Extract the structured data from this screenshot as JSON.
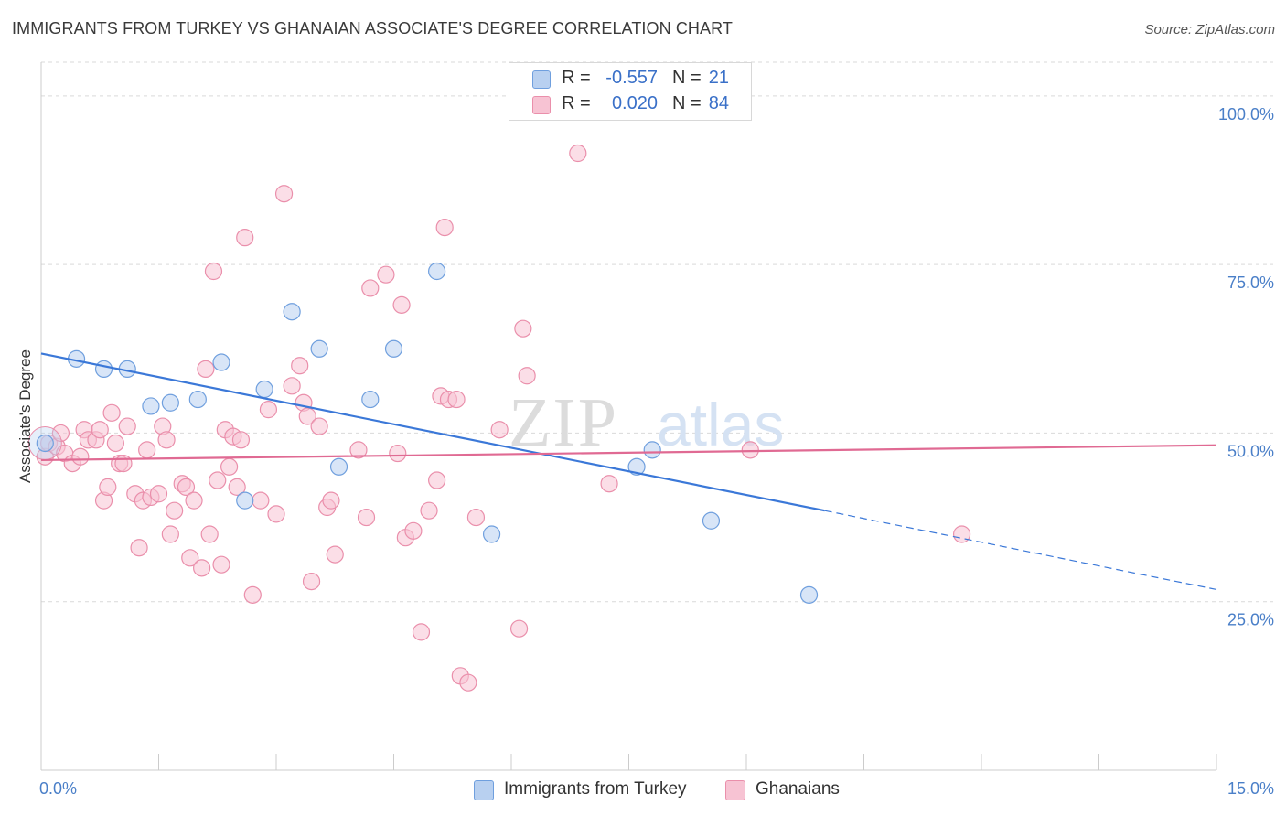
{
  "title": "IMMIGRANTS FROM TURKEY VS GHANAIAN ASSOCIATE'S DEGREE CORRELATION CHART",
  "source": "Source: ZipAtlas.com",
  "watermark": {
    "zip": "ZIP",
    "atlas": "atlas"
  },
  "legend": {
    "r_label": "R =",
    "n_label": "N =",
    "series": [
      {
        "name": "Immigrants from Turkey",
        "r": "-0.557",
        "n": "21"
      },
      {
        "name": "Ghanaians",
        "r": "0.020",
        "n": "84"
      }
    ]
  },
  "colors": {
    "blue_fill": "#b8d0f0",
    "blue_stroke": "#6f9fde",
    "blue_line": "#3b78d8",
    "pink_fill": "#f7c3d3",
    "pink_stroke": "#ea8fab",
    "pink_line": "#e06a93",
    "tick_text": "#4a7fc8",
    "grid": "#d9d9d9"
  },
  "chart_data": {
    "type": "scatter",
    "title": "IMMIGRANTS FROM TURKEY VS GHANAIAN ASSOCIATE'S DEGREE CORRELATION CHART",
    "xlabel": "",
    "ylabel": "Associate's Degree",
    "xlim": [
      0,
      15
    ],
    "ylim": [
      0,
      105
    ],
    "x_tick_labels": [
      "0.0%",
      "15.0%"
    ],
    "y_ticks": [
      25,
      50,
      75,
      100
    ],
    "y_tick_labels": [
      "25.0%",
      "50.0%",
      "75.0%",
      "100.0%"
    ],
    "grid": true,
    "series": [
      {
        "name": "Immigrants from Turkey",
        "color": "blue",
        "points": [
          [
            0.05,
            48.5
          ],
          [
            0.45,
            61.0
          ],
          [
            0.8,
            59.5
          ],
          [
            1.1,
            59.5
          ],
          [
            1.4,
            54.0
          ],
          [
            1.65,
            54.5
          ],
          [
            2.0,
            55.0
          ],
          [
            2.3,
            60.5
          ],
          [
            2.6,
            40.0
          ],
          [
            2.85,
            56.5
          ],
          [
            3.2,
            68.0
          ],
          [
            3.55,
            62.5
          ],
          [
            3.8,
            45.0
          ],
          [
            4.2,
            55.0
          ],
          [
            4.5,
            62.5
          ],
          [
            5.05,
            74.0
          ],
          [
            5.75,
            35.0
          ],
          [
            7.6,
            45.0
          ],
          [
            7.8,
            47.5
          ],
          [
            8.55,
            37.0
          ],
          [
            9.8,
            26.0
          ]
        ],
        "trendline": {
          "x": [
            0,
            10.0,
            15.0
          ],
          "y": [
            61.8,
            38.5,
            26.8
          ],
          "dashed_from_x": 10.0
        }
      },
      {
        "name": "Ghanaians",
        "color": "pink",
        "points": [
          [
            0.05,
            46.5
          ],
          [
            0.1,
            48.5
          ],
          [
            0.2,
            48.0
          ],
          [
            0.25,
            50.0
          ],
          [
            0.3,
            47.0
          ],
          [
            0.4,
            45.5
          ],
          [
            0.5,
            46.5
          ],
          [
            0.55,
            50.5
          ],
          [
            0.6,
            49.0
          ],
          [
            0.7,
            49.0
          ],
          [
            0.75,
            50.5
          ],
          [
            0.8,
            40.0
          ],
          [
            0.85,
            42.0
          ],
          [
            0.9,
            53.0
          ],
          [
            0.95,
            48.5
          ],
          [
            1.0,
            45.5
          ],
          [
            1.05,
            45.5
          ],
          [
            1.1,
            51.0
          ],
          [
            1.2,
            41.0
          ],
          [
            1.25,
            33.0
          ],
          [
            1.3,
            40.0
          ],
          [
            1.35,
            47.5
          ],
          [
            1.4,
            40.5
          ],
          [
            1.5,
            41.0
          ],
          [
            1.55,
            51.0
          ],
          [
            1.6,
            49.0
          ],
          [
            1.65,
            35.0
          ],
          [
            1.7,
            38.5
          ],
          [
            1.8,
            42.5
          ],
          [
            1.85,
            42.0
          ],
          [
            1.9,
            31.5
          ],
          [
            1.95,
            40.0
          ],
          [
            2.05,
            30.0
          ],
          [
            2.1,
            59.5
          ],
          [
            2.15,
            35.0
          ],
          [
            2.2,
            74.0
          ],
          [
            2.25,
            43.0
          ],
          [
            2.3,
            30.5
          ],
          [
            2.35,
            50.5
          ],
          [
            2.4,
            45.0
          ],
          [
            2.45,
            49.5
          ],
          [
            2.5,
            42.0
          ],
          [
            2.55,
            49.0
          ],
          [
            2.6,
            79.0
          ],
          [
            2.7,
            26.0
          ],
          [
            2.8,
            40.0
          ],
          [
            2.9,
            53.5
          ],
          [
            3.0,
            38.0
          ],
          [
            3.1,
            85.5
          ],
          [
            3.2,
            57.0
          ],
          [
            3.3,
            60.0
          ],
          [
            3.35,
            54.5
          ],
          [
            3.4,
            52.5
          ],
          [
            3.45,
            28.0
          ],
          [
            3.55,
            51.0
          ],
          [
            3.65,
            39.0
          ],
          [
            3.7,
            40.0
          ],
          [
            3.75,
            32.0
          ],
          [
            4.05,
            47.5
          ],
          [
            4.15,
            37.5
          ],
          [
            4.2,
            71.5
          ],
          [
            4.4,
            73.5
          ],
          [
            4.55,
            47.0
          ],
          [
            4.6,
            69.0
          ],
          [
            4.65,
            34.5
          ],
          [
            4.75,
            35.5
          ],
          [
            4.85,
            20.5
          ],
          [
            4.95,
            38.5
          ],
          [
            5.05,
            43.0
          ],
          [
            5.1,
            55.5
          ],
          [
            5.15,
            80.5
          ],
          [
            5.2,
            55.0
          ],
          [
            5.3,
            55.0
          ],
          [
            5.35,
            14.0
          ],
          [
            5.45,
            13.0
          ],
          [
            5.55,
            37.5
          ],
          [
            5.85,
            50.5
          ],
          [
            6.1,
            21.0
          ],
          [
            6.15,
            65.5
          ],
          [
            6.2,
            58.5
          ],
          [
            6.85,
            91.5
          ],
          [
            7.25,
            42.5
          ],
          [
            9.05,
            47.5
          ],
          [
            11.75,
            35.0
          ]
        ],
        "trendline": {
          "x": [
            0,
            15.0
          ],
          "y": [
            46.0,
            48.2
          ]
        }
      }
    ]
  }
}
